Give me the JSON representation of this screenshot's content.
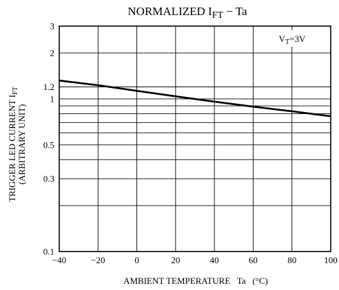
{
  "chart_data": {
    "type": "line",
    "title_main": "NORMALIZED I",
    "title_sub": "FT",
    "title_tail": " − Ta",
    "xlabel": "AMBIENT TEMPERATURE   Ta   (°C)",
    "ylabel_main": "TRIGGER LED CURRENT  I",
    "ylabel_sub": "FT",
    "ylabel_line2": "(ARBITRARY UNIT)",
    "annotation_main": "V",
    "annotation_sub": "T",
    "annotation_tail": "=3V",
    "x_scale": "linear",
    "y_scale": "log",
    "xlim": [
      -40,
      100
    ],
    "ylim": [
      0.1,
      3
    ],
    "x_ticks": [
      -40,
      -20,
      0,
      20,
      40,
      60,
      80,
      100
    ],
    "x_tick_labels": [
      "−40",
      "−20",
      "0",
      "20",
      "40",
      "60",
      "80",
      "100"
    ],
    "y_tick_values": [
      0.1,
      0.3,
      0.5,
      1,
      1.2,
      2,
      3
    ],
    "y_tick_labels": [
      "0.1",
      "0.3",
      "0.5",
      "1",
      "1.2",
      "2",
      "3"
    ],
    "y_gridlines": [
      0.2,
      0.3,
      0.4,
      0.5,
      0.6,
      0.7,
      0.8,
      0.9,
      1,
      1.2,
      2
    ],
    "grid": true,
    "series": [
      {
        "x": [
          -40,
          -20,
          0,
          20,
          40,
          60,
          80,
          100
        ],
        "y": [
          1.32,
          1.23,
          1.13,
          1.04,
          0.96,
          0.89,
          0.83,
          0.77
        ]
      }
    ]
  }
}
